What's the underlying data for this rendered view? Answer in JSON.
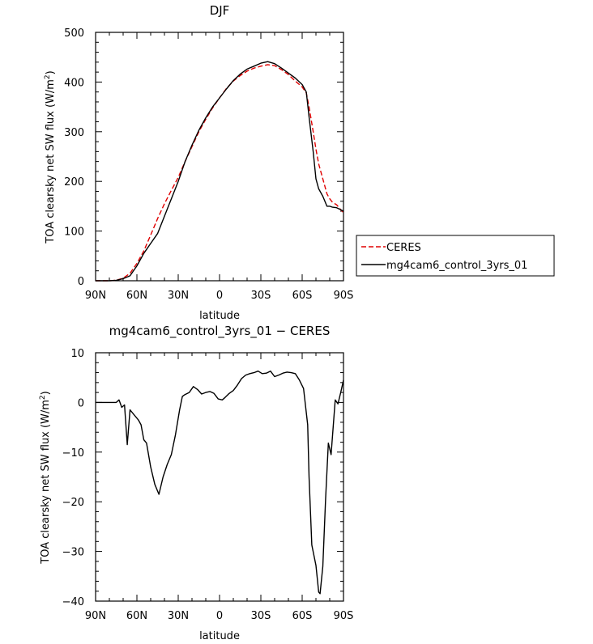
{
  "chart_data": [
    {
      "type": "line",
      "title": "DJF",
      "xlabel": "latitude",
      "ylabel": "TOA clearsky net SW flux (W/m",
      "ylabel_sup": "2",
      "ylabel_end": ")",
      "xlim": [
        -90,
        90
      ],
      "ylim": [
        0,
        500
      ],
      "x_tick_values": [
        -90,
        -60,
        -30,
        0,
        30,
        60,
        90
      ],
      "x_tick_labels": [
        "90N",
        "60N",
        "30N",
        "0",
        "30S",
        "60S",
        "90S"
      ],
      "y_tick_values": [
        0,
        100,
        200,
        300,
        400,
        500
      ],
      "y_tick_labels": [
        "0",
        "100",
        "200",
        "300",
        "400",
        "500"
      ],
      "legend_position": "right",
      "series": [
        {
          "name": "CERES",
          "color": "#e00000",
          "dash": "dashed",
          "x": [
            -90,
            -80,
            -75,
            -70,
            -65,
            -60,
            -55,
            -50,
            -45,
            -40,
            -35,
            -30,
            -25,
            -20,
            -15,
            -10,
            -5,
            0,
            5,
            10,
            15,
            20,
            25,
            30,
            35,
            40,
            45,
            50,
            55,
            60,
            63,
            65,
            68,
            70,
            72,
            75,
            78,
            80,
            82,
            85,
            88,
            90
          ],
          "y": [
            0,
            0,
            1,
            5,
            15,
            35,
            60,
            92,
            125,
            155,
            182,
            208,
            240,
            270,
            300,
            325,
            348,
            368,
            387,
            402,
            413,
            422,
            428,
            432,
            435,
            433,
            425,
            415,
            402,
            390,
            378,
            350,
            300,
            265,
            235,
            205,
            175,
            165,
            158,
            153,
            143,
            137
          ]
        },
        {
          "name": "mg4cam6_control_3yrs_01",
          "color": "#000000",
          "dash": "solid",
          "x": [
            -90,
            -80,
            -75,
            -70,
            -65,
            -60,
            -55,
            -50,
            -45,
            -40,
            -35,
            -30,
            -25,
            -20,
            -15,
            -10,
            -5,
            0,
            5,
            10,
            15,
            20,
            25,
            30,
            35,
            40,
            45,
            50,
            55,
            60,
            63,
            65,
            68,
            70,
            72,
            75,
            78,
            80,
            82,
            85,
            88,
            90
          ],
          "y": [
            0,
            0,
            1,
            4,
            10,
            30,
            55,
            75,
            95,
            130,
            165,
            200,
            240,
            273,
            303,
            328,
            350,
            368,
            386,
            403,
            416,
            426,
            432,
            438,
            441,
            437,
            428,
            418,
            408,
            395,
            380,
            330,
            260,
            205,
            185,
            170,
            150,
            150,
            148,
            147,
            143,
            140
          ]
        }
      ]
    },
    {
      "type": "line",
      "title": "mg4cam6_control_3yrs_01 − CERES",
      "xlabel": "latitude",
      "ylabel": "TOA clearsky net SW flux (W/m",
      "ylabel_sup": "2",
      "ylabel_end": ")",
      "xlim": [
        -90,
        90
      ],
      "ylim": [
        -40,
        10
      ],
      "x_tick_values": [
        -90,
        -60,
        -30,
        0,
        30,
        60,
        90
      ],
      "x_tick_labels": [
        "90N",
        "60N",
        "30N",
        "0",
        "30S",
        "60S",
        "90S"
      ],
      "y_tick_values": [
        -40,
        -30,
        -20,
        -10,
        0,
        10
      ],
      "y_tick_labels": [
        "−40",
        "−30",
        "−20",
        "−10",
        "0",
        "10"
      ],
      "series": [
        {
          "color": "#000000",
          "dash": "solid",
          "x": [
            -90,
            -80,
            -75,
            -73,
            -71,
            -69,
            -67,
            -65,
            -62,
            -59,
            -57,
            -55,
            -53,
            -50,
            -47,
            -44,
            -41,
            -38,
            -35,
            -32,
            -29,
            -27,
            -25,
            -22,
            -19,
            -16,
            -13,
            -10,
            -7,
            -4,
            -1,
            2,
            4,
            7,
            10,
            13,
            16,
            19,
            22,
            25,
            28,
            31,
            34,
            37,
            40,
            43,
            46,
            49,
            52,
            55,
            58,
            61,
            64,
            65,
            67,
            70,
            72,
            73,
            75,
            77,
            79,
            81,
            84,
            86,
            88,
            90
          ],
          "y": [
            0,
            0,
            0,
            0.5,
            -1,
            -0.5,
            -8.5,
            -1.5,
            -2.5,
            -3.5,
            -4.5,
            -7.5,
            -8.2,
            -13,
            -16.5,
            -18.5,
            -15,
            -12.5,
            -10.5,
            -6.5,
            -1.5,
            1.2,
            1.6,
            2,
            3.2,
            2.6,
            1.7,
            2,
            2.2,
            1.8,
            0.7,
            0.5,
            1,
            1.8,
            2.4,
            3.5,
            4.8,
            5.5,
            5.8,
            6,
            6.3,
            5.8,
            5.9,
            6.3,
            5.2,
            5.5,
            5.9,
            6.1,
            6,
            5.8,
            4.5,
            2.8,
            -4.5,
            -15,
            -28.7,
            -32.8,
            -38.2,
            -38.5,
            -33,
            -19.5,
            -8.2,
            -10.5,
            0.5,
            -0.3,
            2,
            4.5
          ]
        }
      ]
    }
  ]
}
